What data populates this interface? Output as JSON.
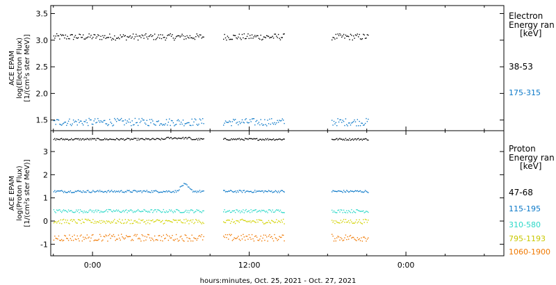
{
  "xaxis": {
    "label": "hours:minutes, Oct. 25, 2021 - Oct. 27, 2021",
    "tick_labels": [
      "0:00",
      "12:00",
      "0:00"
    ]
  },
  "colors": {
    "black": "#000000",
    "blue": "#0a78c8",
    "cyan": "#2ad8c8",
    "yellow": "#d2d200",
    "orange": "#f07800"
  },
  "chart_data": [
    {
      "type": "scatter",
      "panel": "electron",
      "ylabel_lines": [
        "ACE EPAM",
        "log(Electron Flux)",
        "[1/(cm²s ster MeV)]"
      ],
      "ylim": [
        1.3,
        3.65
      ],
      "yticks": [
        "1.5",
        "2.0",
        "2.5",
        "3.0",
        "3.5"
      ],
      "legend": {
        "header": [
          "Electron",
          "Energy ran",
          "[keV]"
        ],
        "entries": [
          "38-53",
          "175-315"
        ]
      },
      "x_unit": "hours since Oct. 25, 2021 0:00",
      "xlim": [
        -3.2,
        31.5
      ],
      "data_segments_hours": [
        [
          -3.0,
          8.5
        ],
        [
          10.0,
          14.7
        ],
        [
          18.3,
          21.1
        ]
      ],
      "series": [
        {
          "name": "38-53",
          "color": "black",
          "mean": 3.07,
          "amplitude": 0.06
        },
        {
          "name": "175-315",
          "color": "blue",
          "mean": 1.47,
          "amplitude": 0.07
        }
      ]
    },
    {
      "type": "scatter",
      "panel": "proton",
      "ylabel_lines": [
        "ACE EPAM",
        "log(Proton Flux)",
        "[1/(cm²s ster MeV)]"
      ],
      "ylim": [
        -1.5,
        3.9
      ],
      "yticks": [
        "-1",
        "0",
        "1",
        "2",
        "3"
      ],
      "legend": {
        "header": [
          "Proton",
          "Energy ran",
          "[keV]"
        ],
        "entries": [
          "47-68",
          "115-195",
          "310-580",
          "795-1193",
          "1060-1900"
        ]
      },
      "x_unit": "hours since Oct. 25, 2021 0:00",
      "xlim": [
        -3.2,
        31.5
      ],
      "data_segments_hours": [
        [
          -3.0,
          8.5
        ],
        [
          10.0,
          14.7
        ],
        [
          18.3,
          21.1
        ]
      ],
      "series": [
        {
          "name": "47-68",
          "color": "black",
          "mean": 3.55,
          "amplitude": 0.04
        },
        {
          "name": "115-195",
          "color": "blue",
          "mean": 1.3,
          "amplitude": 0.05
        },
        {
          "name": "310-580",
          "color": "cyan",
          "mean": 0.45,
          "amplitude": 0.07
        },
        {
          "name": "795-1193",
          "color": "yellow",
          "mean": 0.0,
          "amplitude": 0.1
        },
        {
          "name": "1060-1900",
          "color": "orange",
          "mean": -0.7,
          "amplitude": 0.15
        }
      ]
    }
  ]
}
